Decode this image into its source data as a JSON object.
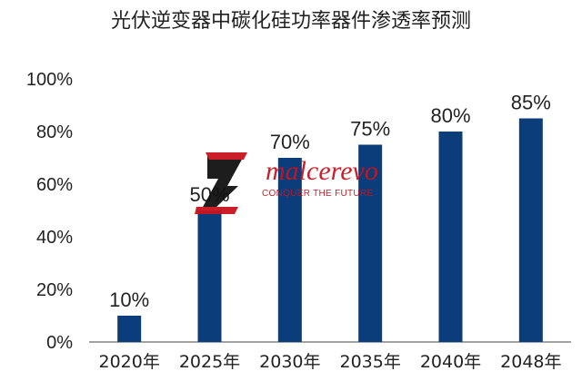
{
  "chart_data": {
    "type": "bar",
    "title": "光伏逆变器中碳化硅功率器件渗透率预测",
    "categories": [
      "2020年",
      "2025年",
      "2030年",
      "2035年",
      "2040年",
      "2048年"
    ],
    "values": [
      10,
      50,
      70,
      75,
      80,
      85
    ],
    "data_labels": [
      "10%",
      "50%",
      "70%",
      "75%",
      "80%",
      "85%"
    ],
    "ylim": [
      0,
      100
    ],
    "yticks": [
      0,
      20,
      40,
      60,
      80,
      100
    ],
    "ytick_labels": [
      "0%",
      "20%",
      "40%",
      "60%",
      "80%",
      "100%"
    ],
    "xlabel": "",
    "ylabel": "",
    "grid": false,
    "bar_color": "#0b3d7a"
  },
  "watermark": {
    "brand": "malcerevo",
    "tagline": "CONQUER THE FUTURE",
    "color": "#c8141e"
  }
}
